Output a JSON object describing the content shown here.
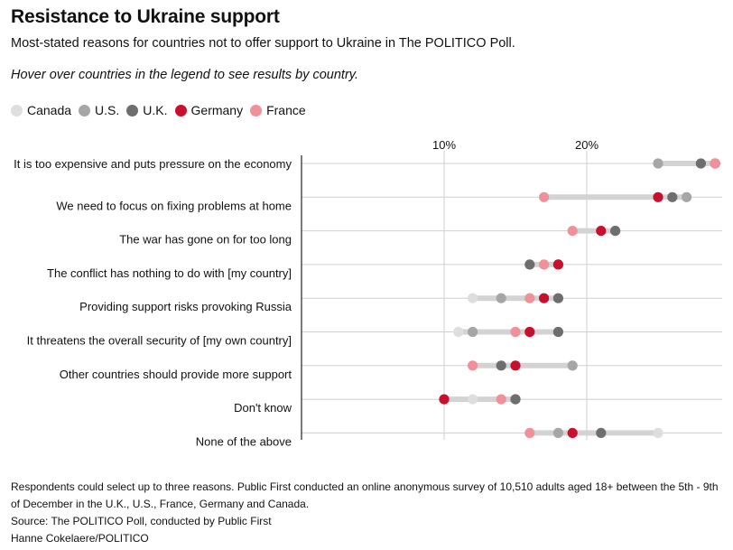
{
  "header": {
    "title": "Resistance to Ukraine support",
    "subtitle": "Most-stated reasons for countries not to offer support to Ukraine in The POLITICO Poll.",
    "hint": "Hover over countries in the legend to see results by country."
  },
  "legend": [
    {
      "label": "Canada",
      "color": "#dedede"
    },
    {
      "label": "U.S.",
      "color": "#a6a6a6"
    },
    {
      "label": "U.K.",
      "color": "#6e6e6e"
    },
    {
      "label": "Germany",
      "color": "#c8102e"
    },
    {
      "label": "France",
      "color": "#f0909b"
    }
  ],
  "chart_data": {
    "type": "dot-range",
    "title": "Resistance to Ukraine support",
    "x_unit": "%",
    "xlim": [
      0,
      29
    ],
    "ticks": [
      10,
      20
    ],
    "tick_labels": [
      "10%",
      "20%"
    ],
    "series_order": [
      "Canada",
      "U.S.",
      "U.K.",
      "Germany",
      "France"
    ],
    "categories": [
      "It is too expensive and puts pressure on the economy",
      "We need to focus on fixing problems at home",
      "The war has gone on for too long",
      "The conflict has nothing to do with [my country]",
      "Providing support risks provoking Russia",
      "It threatens the overall security of [my own country]",
      "Other countries should provide more support",
      "Don't know",
      "None of the above"
    ],
    "series": [
      {
        "name": "Canada",
        "values": [
          29,
          27,
          22,
          18,
          12,
          11,
          19,
          12,
          25
        ]
      },
      {
        "name": "U.S.",
        "values": [
          25,
          27,
          22,
          18,
          14,
          12,
          19,
          15,
          18
        ]
      },
      {
        "name": "U.K.",
        "values": [
          28,
          26,
          22,
          16,
          18,
          18,
          14,
          15,
          21
        ]
      },
      {
        "name": "Germany",
        "values": [
          29,
          25,
          21,
          18,
          17,
          16,
          15,
          10,
          19
        ]
      },
      {
        "name": "France",
        "values": [
          29,
          17,
          19,
          17,
          16,
          15,
          12,
          14,
          16
        ]
      }
    ]
  },
  "footer": {
    "note": "Respondents could select up to three reasons. Public First conducted an online anonymous survey of 10,510 adults aged 18+ between the 5th - 9th of December in the U.K., U.S., France, Germany and Canada.",
    "source": "Source: The POLITICO Poll, conducted by Public First",
    "credit": "Hanne Cokelaere/POLITICO"
  }
}
